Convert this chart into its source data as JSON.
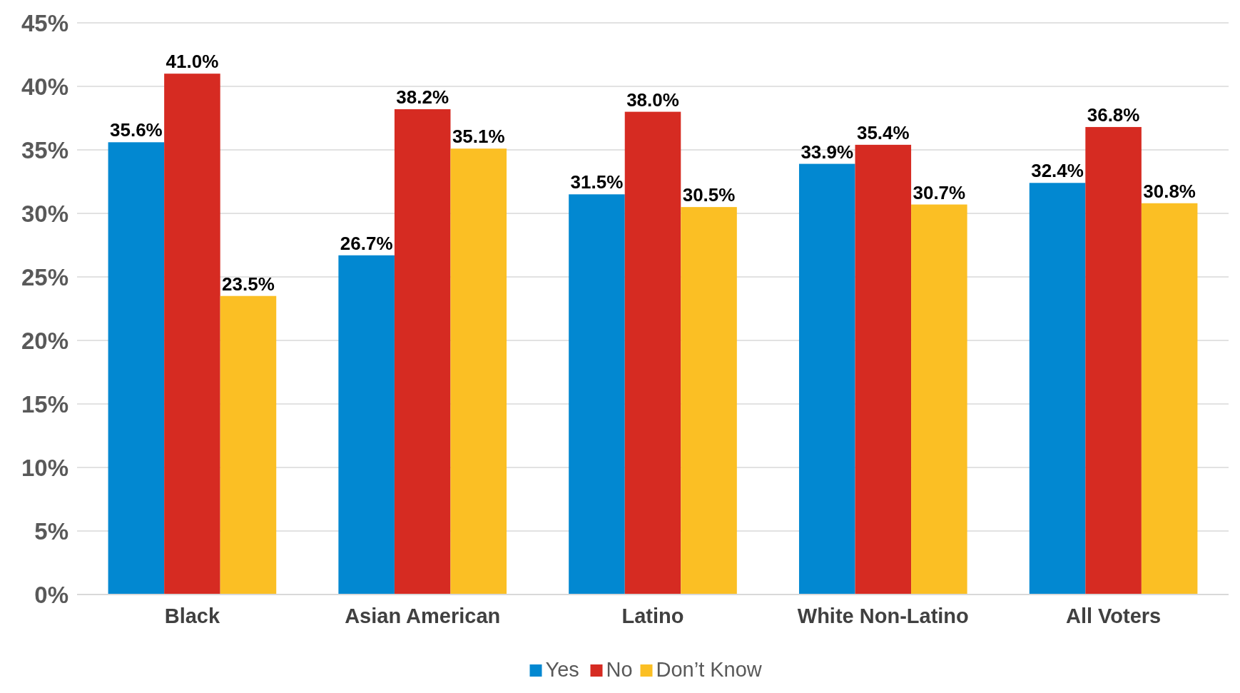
{
  "chart_data": {
    "type": "bar",
    "categories": [
      "Black",
      "Asian American",
      "Latino",
      "White Non-Latino",
      "All Voters"
    ],
    "series": [
      {
        "name": "Yes",
        "color": "#0288d1",
        "values": [
          35.6,
          26.7,
          31.5,
          33.9,
          32.4
        ],
        "value_labels": [
          "35.6%",
          "26.7%",
          "31.5%",
          "33.9%",
          "32.4%"
        ]
      },
      {
        "name": "No",
        "color": "#d62b22",
        "values": [
          41.0,
          38.2,
          38.0,
          35.4,
          36.8
        ],
        "value_labels": [
          "41.0%",
          "38.2%",
          "38.0%",
          "35.4%",
          "36.8%"
        ]
      },
      {
        "name": "Don’t Know",
        "color": "#fbbf24",
        "values": [
          23.5,
          35.1,
          30.5,
          30.7,
          30.8
        ],
        "value_labels": [
          "23.5%",
          "35.1%",
          "30.5%",
          "30.7%",
          "30.8%"
        ]
      }
    ],
    "ylim": [
      0,
      45
    ],
    "yticks": [
      {
        "value": 0,
        "label": "0%"
      },
      {
        "value": 5,
        "label": "5%"
      },
      {
        "value": 10,
        "label": "10%"
      },
      {
        "value": 15,
        "label": "15%"
      },
      {
        "value": 20,
        "label": "20%"
      },
      {
        "value": 25,
        "label": "25%"
      },
      {
        "value": 30,
        "label": "30%"
      },
      {
        "value": 35,
        "label": "35%"
      },
      {
        "value": 40,
        "label": "40%"
      },
      {
        "value": 45,
        "label": "45%"
      }
    ],
    "grid": "y",
    "legend": "bottom"
  }
}
